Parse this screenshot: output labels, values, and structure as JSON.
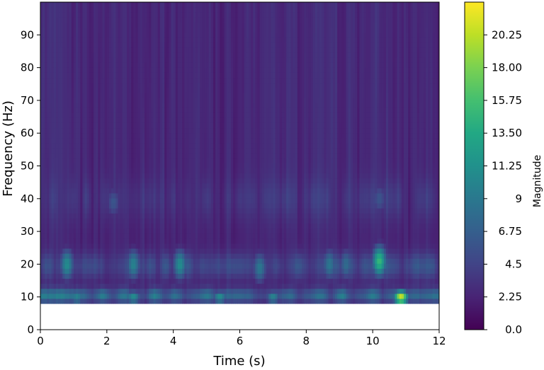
{
  "chart_data": {
    "type": "heatmap",
    "xlabel": "Time (s)",
    "ylabel": "Frequency (Hz)",
    "colorbar_label": "Magnitude",
    "colormap": "viridis",
    "xlim": [
      0,
      12
    ],
    "ylim": [
      0,
      100
    ],
    "data_ylim": [
      8,
      100
    ],
    "clim": [
      0,
      22.5
    ],
    "x_ticks": [
      0,
      2,
      4,
      6,
      8,
      10,
      12
    ],
    "x_tick_labels": [
      "0",
      "2",
      "4",
      "6",
      "8",
      "10",
      "12"
    ],
    "y_ticks": [
      0,
      10,
      20,
      30,
      40,
      50,
      60,
      70,
      80,
      90
    ],
    "y_tick_labels": [
      "0",
      "10",
      "20",
      "30",
      "40",
      "50",
      "60",
      "70",
      "80",
      "90"
    ],
    "colorbar_ticks": [
      0,
      2.25,
      4.5,
      6.75,
      9,
      11.25,
      13.5,
      15.75,
      18,
      20.25
    ],
    "colorbar_tick_labels": [
      "0.0",
      "2.25",
      "4.5",
      "6.75",
      "9",
      "11.25",
      "13.50",
      "15.75",
      "18.00",
      "20.25"
    ],
    "hotspots": [
      {
        "t": 10.85,
        "f": 10,
        "magnitude": 21
      },
      {
        "t": 10.2,
        "f": 21,
        "magnitude": 15
      },
      {
        "t": 0.8,
        "f": 20,
        "magnitude": 11
      },
      {
        "t": 2.8,
        "f": 20,
        "magnitude": 10
      },
      {
        "t": 4.2,
        "f": 20,
        "magnitude": 11
      },
      {
        "t": 6.6,
        "f": 19,
        "magnitude": 9
      },
      {
        "t": 8.7,
        "f": 20,
        "magnitude": 9
      },
      {
        "t": 9.2,
        "f": 20,
        "magnitude": 8
      },
      {
        "t": 2.2,
        "f": 39,
        "magnitude": 6
      },
      {
        "t": 1.1,
        "f": 10,
        "magnitude": 10
      },
      {
        "t": 2.8,
        "f": 10,
        "magnitude": 11
      },
      {
        "t": 5.4,
        "f": 10,
        "magnitude": 11
      },
      {
        "t": 7.0,
        "f": 10,
        "magnitude": 10
      },
      {
        "t": 10.2,
        "f": 40,
        "magnitude": 6
      }
    ]
  }
}
